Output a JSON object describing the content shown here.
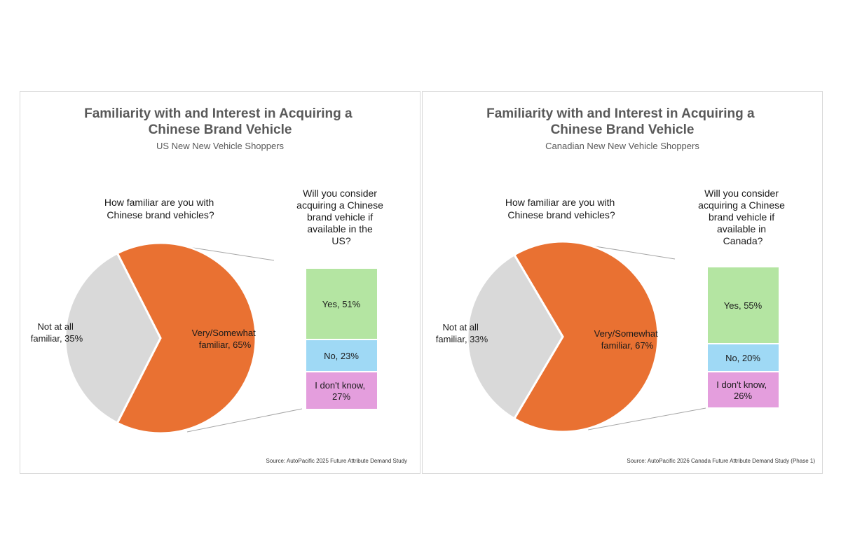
{
  "chart_data": [
    {
      "type": "pie",
      "title": "Familiarity with and Interest in Acquiring a Chinese Brand Vehicle",
      "subtitle": "US New New Vehicle Shoppers",
      "pie_question": "How familiar are you with Chinese brand vehicles?",
      "bar_question": "Will you consider acquiring a Chinese brand vehicle if available in the US?",
      "slices": [
        {
          "label": "Very/Somewhat familiar, 65%",
          "value": 65,
          "color": "#e97132"
        },
        {
          "label": "Not at all familiar, 35%",
          "value": 35,
          "color": "#d9d9d9"
        }
      ],
      "exploded_slice": "Very/Somewhat familiar",
      "breakdown": [
        {
          "label": "Yes, 51%",
          "value": 51,
          "color": "#b4e5a2"
        },
        {
          "label": "No, 23%",
          "value": 23,
          "color": "#9fd9f5"
        },
        {
          "label": "I don't know, 27%",
          "value": 27,
          "color": "#e49edd"
        }
      ],
      "source": "Source: AutoPacific 2025 Future Attribute Demand Study"
    },
    {
      "type": "pie",
      "title": "Familiarity with and Interest in Acquiring a Chinese Brand Vehicle",
      "subtitle": "Canadian New New Vehicle Shoppers",
      "pie_question": "How familiar are you with Chinese brand vehicles?",
      "bar_question": "Will you consider acquiring a Chinese brand vehicle if available in Canada?",
      "slices": [
        {
          "label": "Very/Somewhat familiar, 67%",
          "value": 67,
          "color": "#e97132"
        },
        {
          "label": "Not at all familiar, 33%",
          "value": 33,
          "color": "#d9d9d9"
        }
      ],
      "exploded_slice": "Very/Somewhat familiar",
      "breakdown": [
        {
          "label": "Yes, 55%",
          "value": 55,
          "color": "#b4e5a2"
        },
        {
          "label": "No, 20%",
          "value": 20,
          "color": "#9fd9f5"
        },
        {
          "label": "I don't know, 26%",
          "value": 26,
          "color": "#e49edd"
        }
      ],
      "source": "Source: AutoPacific 2026 Canada Future Attribute Demand Study (Phase 1)"
    }
  ],
  "display": {
    "us": {
      "title_lines": [
        "Familiarity with and Interest in Acquiring a",
        "Chinese Brand Vehicle"
      ],
      "pie_question_lines": [
        "How familiar are you with",
        "Chinese brand vehicles?"
      ],
      "bar_question_lines": [
        "Will you consider",
        "acquiring a Chinese",
        "brand vehicle if",
        "available in the",
        "US?"
      ],
      "slice_label_lines": [
        [
          "Very/Somewhat",
          "familiar, 65%"
        ],
        [
          "Not at all",
          "familiar, 35%"
        ]
      ],
      "bar_label_lines": [
        [
          "Yes, 51%"
        ],
        [
          "No, 23%"
        ],
        [
          "I don't know,",
          "27%"
        ]
      ]
    },
    "ca": {
      "title_lines": [
        "Familiarity with and Interest in Acquiring a",
        "Chinese Brand Vehicle"
      ],
      "pie_question_lines": [
        "How familiar are you with",
        "Chinese brand vehicles?"
      ],
      "bar_question_lines": [
        "Will you consider",
        "acquiring a Chinese",
        "brand vehicle if",
        "available in",
        "Canada?"
      ],
      "slice_label_lines": [
        [
          "Very/Somewhat",
          "familiar, 67%"
        ],
        [
          "Not at all",
          "familiar, 33%"
        ]
      ],
      "bar_label_lines": [
        [
          "Yes, 55%"
        ],
        [
          "No, 20%"
        ],
        [
          "I don't know,",
          "26%"
        ]
      ]
    }
  }
}
